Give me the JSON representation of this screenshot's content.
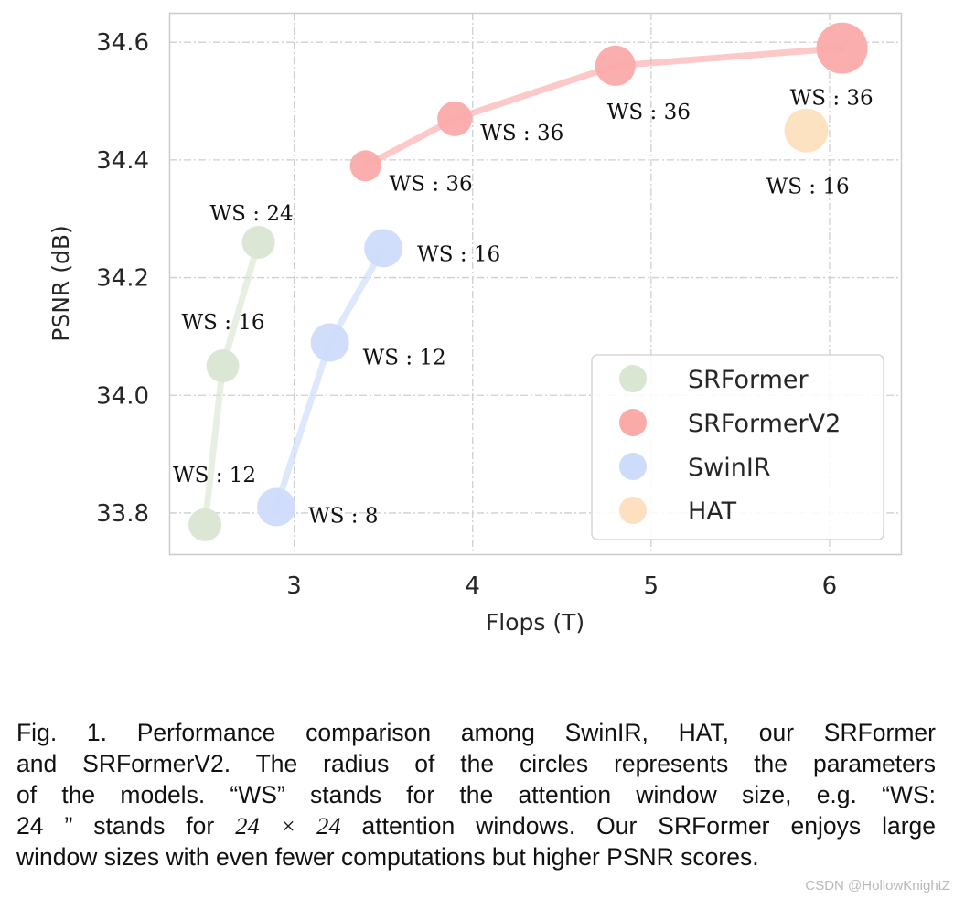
{
  "chart_data": {
    "type": "scatter",
    "xlabel": "Flops (T)",
    "ylabel": "PSNR (dB)",
    "xlim": [
      2.3,
      6.4
    ],
    "ylim": [
      33.73,
      34.65
    ],
    "xticks": [
      3,
      4,
      5,
      6
    ],
    "yticks": [
      33.8,
      34.0,
      34.2,
      34.4,
      34.6
    ],
    "ytick_labels": [
      "33.8",
      "34.0",
      "34.2",
      "34.4",
      "34.6"
    ],
    "grid": true,
    "legend_placement": "lower-right",
    "series": [
      {
        "name": "SRFormer",
        "color": "#d9e6d2",
        "points": [
          {
            "x": 2.5,
            "y": 33.78,
            "label": "WS : 12",
            "size": 18
          },
          {
            "x": 2.6,
            "y": 34.05,
            "label": "WS : 16",
            "size": 18
          },
          {
            "x": 2.8,
            "y": 34.26,
            "label": "WS : 24",
            "size": 18
          }
        ]
      },
      {
        "name": "SRFormerV2",
        "color": "#fbaaaa",
        "points": [
          {
            "x": 3.4,
            "y": 34.39,
            "label": "WS : 36",
            "size": 17
          },
          {
            "x": 3.9,
            "y": 34.47,
            "label": "WS : 36",
            "size": 19
          },
          {
            "x": 4.8,
            "y": 34.56,
            "label": "WS : 36",
            "size": 22
          },
          {
            "x": 6.07,
            "y": 34.59,
            "label": "WS : 36",
            "size": 28
          }
        ]
      },
      {
        "name": "SwinIR",
        "color": "#cddcfb",
        "points": [
          {
            "x": 2.9,
            "y": 33.81,
            "label": "WS : 8",
            "size": 21
          },
          {
            "x": 3.2,
            "y": 34.09,
            "label": "WS : 12",
            "size": 21
          },
          {
            "x": 3.5,
            "y": 34.25,
            "label": "WS : 16",
            "size": 21
          }
        ]
      },
      {
        "name": "HAT",
        "color": "#fde0bf",
        "points": [
          {
            "x": 5.87,
            "y": 34.45,
            "label": "WS : 16",
            "size": 24
          }
        ]
      }
    ]
  },
  "caption": {
    "lines": [
      "Fig. 1. Performance comparison among SwinIR, HAT, our SRFormer",
      "and SRFormerV2. The radius of the circles represents the parameters",
      "of the models. “WS” stands for the attention window size, e.g. “WS:",
      "window sizes with even fewer computations but higher PSNR scores."
    ],
    "line4_pre": "24 ” stands for ",
    "line4_math": "24 × 24",
    "line4_post": " attention windows. Our SRFormer enjoys large"
  },
  "watermark": "CSDN @HollowKnightZ"
}
